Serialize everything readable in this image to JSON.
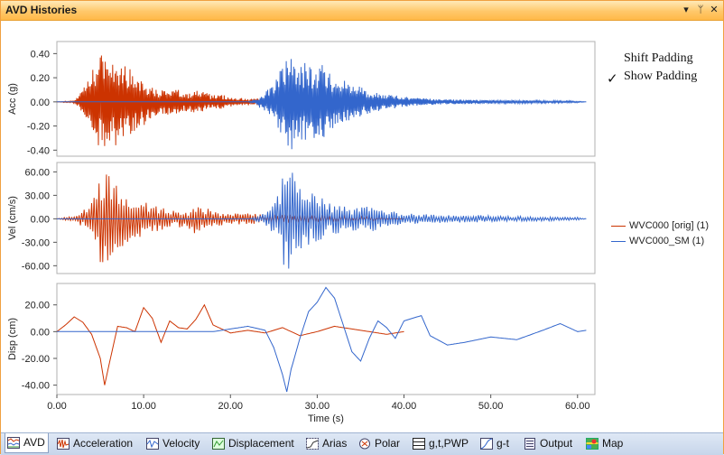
{
  "window": {
    "title": "AVD Histories",
    "buttons": [
      "▾",
      "ᛘ",
      "✕"
    ]
  },
  "padding_options": {
    "shift": "Shift Padding",
    "show": "Show Padding",
    "show_checked": true,
    "check_mark": "✓"
  },
  "legend": [
    {
      "label": "WVC000 [orig]  (1)",
      "color": "#cc3300"
    },
    {
      "label": "WVC000_SM (1)",
      "color": "#3366cc"
    }
  ],
  "tabs": [
    {
      "label": "AVD",
      "icon": "avd-icon",
      "active": true
    },
    {
      "label": "Acceleration",
      "icon": "acceleration-icon",
      "active": false
    },
    {
      "label": "Velocity",
      "icon": "velocity-icon",
      "active": false
    },
    {
      "label": "Displacement",
      "icon": "displacement-icon",
      "active": false
    },
    {
      "label": "Arias",
      "icon": "arias-icon",
      "active": false
    },
    {
      "label": "Polar",
      "icon": "polar-icon",
      "active": false
    },
    {
      "label": "g,t,PWP",
      "icon": "gtpwp-icon",
      "active": false
    },
    {
      "label": "g-t",
      "icon": "gt-icon",
      "active": false
    },
    {
      "label": "Output",
      "icon": "output-icon",
      "active": false
    },
    {
      "label": "Map",
      "icon": "map-icon",
      "active": false
    }
  ],
  "chart_data": {
    "type": "line",
    "xlabel": "Time (s)",
    "xlim": [
      0,
      62
    ],
    "xticks": [
      "0.00",
      "10.00",
      "20.00",
      "30.00",
      "40.00",
      "50.00",
      "60.00"
    ],
    "series_names": [
      "WVC000 [orig]  (1)",
      "WVC000_SM (1)"
    ],
    "colors": {
      "orig": "#cc3300",
      "sm": "#3366cc"
    },
    "panels": [
      {
        "name": "acc",
        "ylabel": "Acc (g)",
        "ylim": [
          -0.45,
          0.5
        ],
        "yticks": [
          "0.40",
          "0.20",
          "0.00",
          "-0.20",
          "-0.40"
        ],
        "series": [
          {
            "name": "WVC000 [orig]  (1)",
            "color": "#cc3300",
            "x": [
              0,
              2,
              3,
              4,
              5,
              5.5,
              6,
              7,
              8,
              9,
              10,
              11,
              12,
              13,
              14,
              15,
              16,
              17,
              18,
              19,
              20,
              22,
              25,
              30,
              35,
              40
            ],
            "amp": [
              0,
              0.01,
              0.1,
              0.25,
              0.4,
              0.42,
              0.35,
              0.38,
              0.3,
              0.25,
              0.2,
              0.12,
              0.1,
              0.12,
              0.1,
              0.08,
              0.1,
              0.08,
              0.06,
              0.06,
              0.04,
              0.03,
              0.02,
              0.015,
              0.01,
              0
            ]
          },
          {
            "name": "WVC000_SM (1)",
            "color": "#3366cc",
            "x": [
              0,
              22,
              23,
              24,
              25,
              26,
              27,
              28,
              29,
              30,
              31,
              32,
              33,
              34,
              36,
              38,
              40,
              42,
              45,
              50,
              55,
              60,
              61
            ],
            "amp": [
              0,
              0,
              0.02,
              0.1,
              0.15,
              0.3,
              0.42,
              0.35,
              0.3,
              0.32,
              0.3,
              0.2,
              0.18,
              0.15,
              0.1,
              0.06,
              0.05,
              0.03,
              0.02,
              0.015,
              0.012,
              0.008,
              0
            ]
          }
        ]
      },
      {
        "name": "vel",
        "ylabel": "Vel (cm/s)",
        "ylim": [
          -70,
          72
        ],
        "yticks": [
          "60.00",
          "30.00",
          "0.00",
          "-30.00",
          "-60.00"
        ],
        "series": [
          {
            "name": "WVC000 [orig]  (1)",
            "color": "#cc3300",
            "x": [
              0,
              2,
              3,
              4,
              5,
              5.5,
              6,
              7,
              8,
              9,
              10,
              11,
              12,
              13,
              14,
              15,
              16,
              17,
              18,
              20,
              22,
              25,
              30,
              35,
              40
            ],
            "amp": [
              0,
              5,
              10,
              25,
              60,
              68,
              60,
              40,
              35,
              30,
              25,
              20,
              15,
              12,
              12,
              10,
              20,
              15,
              10,
              8,
              7,
              6,
              5,
              3,
              0
            ]
          },
          {
            "name": "WVC000_SM (1)",
            "color": "#3366cc",
            "x": [
              0,
              22,
              23,
              24,
              25,
              26,
              27,
              28,
              29,
              30,
              31,
              32,
              34,
              36,
              38,
              40,
              42,
              45,
              48,
              50,
              55,
              60,
              61
            ],
            "amp": [
              0,
              0,
              3,
              8,
              20,
              60,
              68,
              45,
              35,
              30,
              25,
              20,
              15,
              18,
              10,
              8,
              6,
              5,
              5,
              4,
              3,
              2,
              0
            ]
          }
        ]
      },
      {
        "name": "disp",
        "ylabel": "Disp (cm)",
        "ylim": [
          -47,
          36
        ],
        "yticks": [
          "20.00",
          "0.00",
          "-20.00",
          "-40.00"
        ],
        "series": [
          {
            "name": "WVC000 [orig]  (1)",
            "color": "#cc3300",
            "x": [
              0,
              1,
              2,
              3,
              4,
              5,
              5.5,
              6,
              7,
              8,
              9,
              10,
              11,
              12,
              13,
              14,
              15,
              16,
              17,
              18,
              20,
              22,
              24,
              26,
              28,
              30,
              32,
              34,
              36,
              38,
              40
            ],
            "y": [
              0,
              5,
              11,
              7,
              -2,
              -20,
              -40,
              -25,
              4,
              3,
              0,
              18,
              10,
              -8,
              8,
              3,
              2,
              9,
              20,
              5,
              -1,
              1,
              -1,
              3,
              -3,
              0,
              4,
              2,
              0,
              -2,
              0
            ]
          },
          {
            "name": "WVC000_SM (1)",
            "color": "#3366cc",
            "x": [
              0,
              18,
              20,
              22,
              24,
              25,
              26,
              26.5,
              27,
              28,
              29,
              30,
              31,
              32,
              33,
              34,
              35,
              36,
              37,
              38,
              39,
              40,
              42,
              43,
              45,
              47,
              50,
              53,
              56,
              58,
              60,
              61
            ],
            "y": [
              0,
              0,
              2,
              4,
              1,
              -12,
              -32,
              -45,
              -28,
              -5,
              15,
              22,
              33,
              25,
              5,
              -15,
              -22,
              -5,
              8,
              3,
              -5,
              8,
              12,
              -3,
              -10,
              -8,
              -4,
              -6,
              1,
              6,
              0,
              1
            ]
          }
        ]
      }
    ]
  }
}
